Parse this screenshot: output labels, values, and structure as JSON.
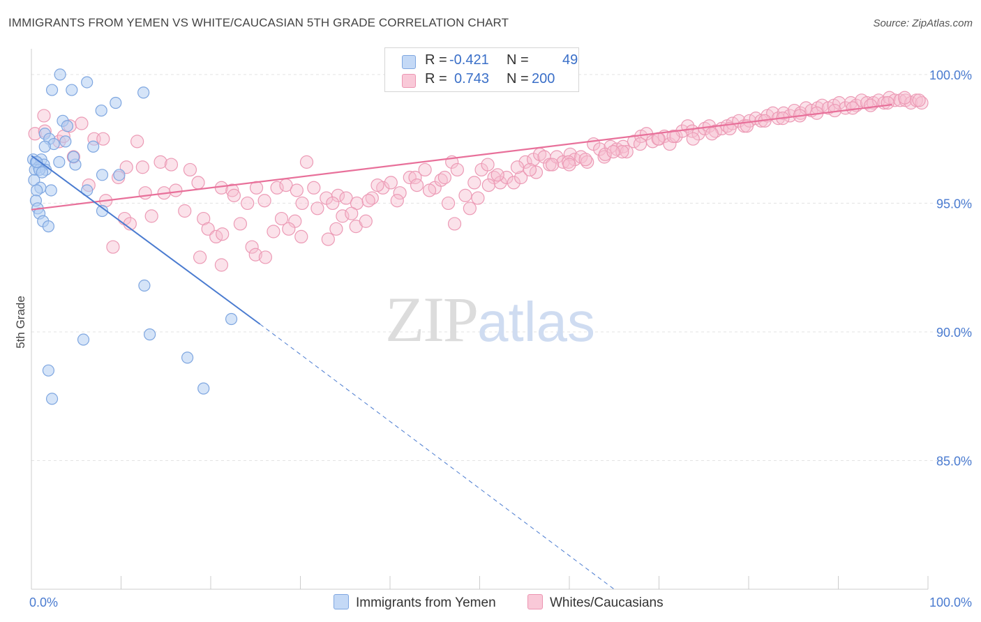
{
  "title": "IMMIGRANTS FROM YEMEN VS WHITE/CAUCASIAN 5TH GRADE CORRELATION CHART",
  "source": "Source: ZipAtlas.com",
  "watermark": {
    "zip": "ZIP",
    "atlas": "atlas"
  },
  "legend": {
    "rows": [
      {
        "r_label": "R = ",
        "r_value": "-0.421",
        "n_label": "N = ",
        "n_value": "49",
        "color": "#a9c8f2"
      },
      {
        "r_label": "R = ",
        "r_value": "0.743",
        "n_label": "N = ",
        "n_value": "200",
        "color": "#f5b5c9"
      }
    ]
  },
  "bottom_legend": [
    {
      "label": "Immigrants from Yemen",
      "color": "#a9c8f2"
    },
    {
      "label": "Whites/Caucasians",
      "color": "#f5b5c9"
    }
  ],
  "chart_data": {
    "type": "scatter",
    "title": "IMMIGRANTS FROM YEMEN VS WHITE/CAUCASIAN 5TH GRADE CORRELATION CHART",
    "xlabel": "",
    "ylabel": "5th Grade",
    "xlim": [
      0,
      100
    ],
    "ylim": [
      80.0,
      101.0
    ],
    "x_tick_labels": [
      "0.0%",
      "100.0%"
    ],
    "y_ticks": [
      85.0,
      90.0,
      95.0,
      100.0
    ],
    "y_tick_labels": [
      "85.0%",
      "90.0%",
      "95.0%",
      "100.0%"
    ],
    "grid": true,
    "colors": {
      "blue": "#4a7bd0",
      "blue_fill": "#b3cdf3",
      "pink": "#e8709a",
      "pink_fill": "#f7bed0"
    },
    "series": [
      {
        "name": "Immigrants from Yemen",
        "color": "#a9c8f2",
        "points": [
          [
            3.2,
            100.0
          ],
          [
            6.2,
            99.7
          ],
          [
            2.3,
            99.4
          ],
          [
            4.5,
            99.4
          ],
          [
            12.5,
            99.3
          ],
          [
            9.4,
            98.9
          ],
          [
            7.8,
            98.6
          ],
          [
            3.5,
            98.2
          ],
          [
            4.0,
            98.0
          ],
          [
            1.5,
            97.7
          ],
          [
            2.0,
            97.5
          ],
          [
            2.5,
            97.3
          ],
          [
            6.9,
            97.2
          ],
          [
            1.5,
            97.2
          ],
          [
            0.2,
            96.7
          ],
          [
            0.5,
            96.6
          ],
          [
            1.1,
            96.7
          ],
          [
            1.4,
            96.5
          ],
          [
            3.1,
            96.6
          ],
          [
            4.9,
            96.5
          ],
          [
            0.8,
            96.4
          ],
          [
            0.4,
            96.3
          ],
          [
            1.6,
            96.3
          ],
          [
            0.9,
            96.3
          ],
          [
            7.9,
            96.1
          ],
          [
            9.8,
            96.1
          ],
          [
            0.3,
            95.9
          ],
          [
            1.0,
            95.6
          ],
          [
            0.6,
            95.5
          ],
          [
            2.2,
            95.5
          ],
          [
            6.2,
            95.5
          ],
          [
            0.5,
            95.1
          ],
          [
            0.7,
            94.8
          ],
          [
            0.9,
            94.6
          ],
          [
            7.9,
            94.7
          ],
          [
            1.3,
            94.3
          ],
          [
            1.9,
            94.1
          ],
          [
            12.6,
            91.8
          ],
          [
            22.3,
            90.5
          ],
          [
            5.8,
            89.7
          ],
          [
            13.2,
            89.9
          ],
          [
            17.4,
            89.0
          ],
          [
            1.9,
            88.5
          ],
          [
            19.2,
            87.8
          ],
          [
            2.3,
            87.4
          ],
          [
            0.6,
            96.6
          ],
          [
            1.2,
            96.2
          ],
          [
            3.8,
            97.4
          ],
          [
            4.7,
            96.8
          ]
        ],
        "trend": {
          "x0": 0,
          "y0": 96.85,
          "x1": 25.5,
          "y1": 90.3,
          "dashed_to": {
            "x": 65,
            "y": 80.0
          }
        }
      },
      {
        "name": "Whites/Caucasians",
        "color": "#f5b5c9",
        "points": [
          [
            1.4,
            98.4
          ],
          [
            0.4,
            97.7
          ],
          [
            1.5,
            97.8
          ],
          [
            3.1,
            97.4
          ],
          [
            4.3,
            98.0
          ],
          [
            5.6,
            98.1
          ],
          [
            7.0,
            97.5
          ],
          [
            3.6,
            97.6
          ],
          [
            8.0,
            97.5
          ],
          [
            11.8,
            97.4
          ],
          [
            4.7,
            96.8
          ],
          [
            10.6,
            96.4
          ],
          [
            12.4,
            96.4
          ],
          [
            14.4,
            96.6
          ],
          [
            15.6,
            96.5
          ],
          [
            17.7,
            96.3
          ],
          [
            9.7,
            96.0
          ],
          [
            18.6,
            95.8
          ],
          [
            6.4,
            95.7
          ],
          [
            21.2,
            95.6
          ],
          [
            22.4,
            95.5
          ],
          [
            25.1,
            95.6
          ],
          [
            27.4,
            95.6
          ],
          [
            28.4,
            95.7
          ],
          [
            29.6,
            95.5
          ],
          [
            30.7,
            96.6
          ],
          [
            31.5,
            95.6
          ],
          [
            32.9,
            95.2
          ],
          [
            34.2,
            95.3
          ],
          [
            35.1,
            95.2
          ],
          [
            36.3,
            95.0
          ],
          [
            8.3,
            95.1
          ],
          [
            12.7,
            95.4
          ],
          [
            14.8,
            95.4
          ],
          [
            16.1,
            95.5
          ],
          [
            17.1,
            94.7
          ],
          [
            13.4,
            94.5
          ],
          [
            10.4,
            94.4
          ],
          [
            19.2,
            94.4
          ],
          [
            23.3,
            94.2
          ],
          [
            27.9,
            94.4
          ],
          [
            36.2,
            94.1
          ],
          [
            11.0,
            94.2
          ],
          [
            9.1,
            93.3
          ],
          [
            19.7,
            94.0
          ],
          [
            20.6,
            93.7
          ],
          [
            21.3,
            93.8
          ],
          [
            27.0,
            93.9
          ],
          [
            30.1,
            93.7
          ],
          [
            33.1,
            93.6
          ],
          [
            24.6,
            93.3
          ],
          [
            25.0,
            93.0
          ],
          [
            26.1,
            92.9
          ],
          [
            18.8,
            92.9
          ],
          [
            21.2,
            92.6
          ],
          [
            29.4,
            94.3
          ],
          [
            28.7,
            94.0
          ],
          [
            34.7,
            94.5
          ],
          [
            37.3,
            94.3
          ],
          [
            38.0,
            95.2
          ],
          [
            39.2,
            95.6
          ],
          [
            40.1,
            95.8
          ],
          [
            41.1,
            95.4
          ],
          [
            42.2,
            96.0
          ],
          [
            42.8,
            96.0
          ],
          [
            43.9,
            96.3
          ],
          [
            45.0,
            95.6
          ],
          [
            45.7,
            95.9
          ],
          [
            46.1,
            96.0
          ],
          [
            46.9,
            96.6
          ],
          [
            47.5,
            96.3
          ],
          [
            48.4,
            95.3
          ],
          [
            48.9,
            94.8
          ],
          [
            49.4,
            95.8
          ],
          [
            50.2,
            96.3
          ],
          [
            50.9,
            96.5
          ],
          [
            51.6,
            96.0
          ],
          [
            52.3,
            95.8
          ],
          [
            53.0,
            96.0
          ],
          [
            53.8,
            95.8
          ],
          [
            54.6,
            96.0
          ],
          [
            55.1,
            96.6
          ],
          [
            56.0,
            96.7
          ],
          [
            56.7,
            96.9
          ],
          [
            57.2,
            96.8
          ],
          [
            57.8,
            96.5
          ],
          [
            58.6,
            96.8
          ],
          [
            59.3,
            96.6
          ],
          [
            60.1,
            96.9
          ],
          [
            60.6,
            96.7
          ],
          [
            61.3,
            96.8
          ],
          [
            62.0,
            96.6
          ],
          [
            62.7,
            97.3
          ],
          [
            63.4,
            97.1
          ],
          [
            63.9,
            96.8
          ],
          [
            64.6,
            97.2
          ],
          [
            65.3,
            97.1
          ],
          [
            66.0,
            97.2
          ],
          [
            66.4,
            97.0
          ],
          [
            67.2,
            97.4
          ],
          [
            68.0,
            97.6
          ],
          [
            68.6,
            97.7
          ],
          [
            69.3,
            97.4
          ],
          [
            70.0,
            97.5
          ],
          [
            70.6,
            97.6
          ],
          [
            71.2,
            97.3
          ],
          [
            71.9,
            97.6
          ],
          [
            72.6,
            97.8
          ],
          [
            73.2,
            98.0
          ],
          [
            73.7,
            97.8
          ],
          [
            74.4,
            97.7
          ],
          [
            75.1,
            97.9
          ],
          [
            75.6,
            98.0
          ],
          [
            76.3,
            97.8
          ],
          [
            77.0,
            97.9
          ],
          [
            77.6,
            98.0
          ],
          [
            78.2,
            98.1
          ],
          [
            78.9,
            98.2
          ],
          [
            79.5,
            98.0
          ],
          [
            80.1,
            98.2
          ],
          [
            80.8,
            98.3
          ],
          [
            81.4,
            98.2
          ],
          [
            82.1,
            98.4
          ],
          [
            82.7,
            98.5
          ],
          [
            83.3,
            98.3
          ],
          [
            83.9,
            98.5
          ],
          [
            84.6,
            98.4
          ],
          [
            85.1,
            98.6
          ],
          [
            85.8,
            98.5
          ],
          [
            86.4,
            98.7
          ],
          [
            87.0,
            98.6
          ],
          [
            87.7,
            98.7
          ],
          [
            88.2,
            98.8
          ],
          [
            88.9,
            98.7
          ],
          [
            89.5,
            98.8
          ],
          [
            90.1,
            98.9
          ],
          [
            90.8,
            98.7
          ],
          [
            91.4,
            98.9
          ],
          [
            92.0,
            98.8
          ],
          [
            92.6,
            99.0
          ],
          [
            93.2,
            98.9
          ],
          [
            93.9,
            98.9
          ],
          [
            94.5,
            99.0
          ],
          [
            95.1,
            98.9
          ],
          [
            95.7,
            99.1
          ],
          [
            96.3,
            99.0
          ],
          [
            96.9,
            99.0
          ],
          [
            97.5,
            99.0
          ],
          [
            98.1,
            98.9
          ],
          [
            98.7,
            99.0
          ],
          [
            99.3,
            98.9
          ],
          [
            22.6,
            95.3
          ],
          [
            24.1,
            95.0
          ],
          [
            26.0,
            95.1
          ],
          [
            31.9,
            94.8
          ],
          [
            33.6,
            95.0
          ],
          [
            35.7,
            94.6
          ],
          [
            38.6,
            95.7
          ],
          [
            40.8,
            95.1
          ],
          [
            44.4,
            95.5
          ],
          [
            47.2,
            94.2
          ],
          [
            49.8,
            95.2
          ],
          [
            52.0,
            96.1
          ],
          [
            54.2,
            96.4
          ],
          [
            56.3,
            96.2
          ],
          [
            58.1,
            96.5
          ],
          [
            59.9,
            96.6
          ],
          [
            61.8,
            96.7
          ],
          [
            64.0,
            96.9
          ],
          [
            65.9,
            97.0
          ],
          [
            67.9,
            97.3
          ],
          [
            69.9,
            97.5
          ],
          [
            71.6,
            97.6
          ],
          [
            73.8,
            97.5
          ],
          [
            75.9,
            97.7
          ],
          [
            77.9,
            97.9
          ],
          [
            79.8,
            98.0
          ],
          [
            81.8,
            98.2
          ],
          [
            83.8,
            98.3
          ],
          [
            85.7,
            98.4
          ],
          [
            87.6,
            98.5
          ],
          [
            89.6,
            98.6
          ],
          [
            91.6,
            98.7
          ],
          [
            93.6,
            98.8
          ],
          [
            95.5,
            98.9
          ],
          [
            97.4,
            99.1
          ],
          [
            99.0,
            99.0
          ],
          [
            30.2,
            95.0
          ],
          [
            34.0,
            94.0
          ],
          [
            37.6,
            95.1
          ],
          [
            43.0,
            95.7
          ],
          [
            46.5,
            95.0
          ],
          [
            51.0,
            95.7
          ],
          [
            55.6,
            96.3
          ],
          [
            60.0,
            96.5
          ],
          [
            64.9,
            97.0
          ]
        ],
        "trend": {
          "x0": 0,
          "y0": 94.75,
          "x1": 100,
          "y1": 99.0
        }
      }
    ]
  }
}
